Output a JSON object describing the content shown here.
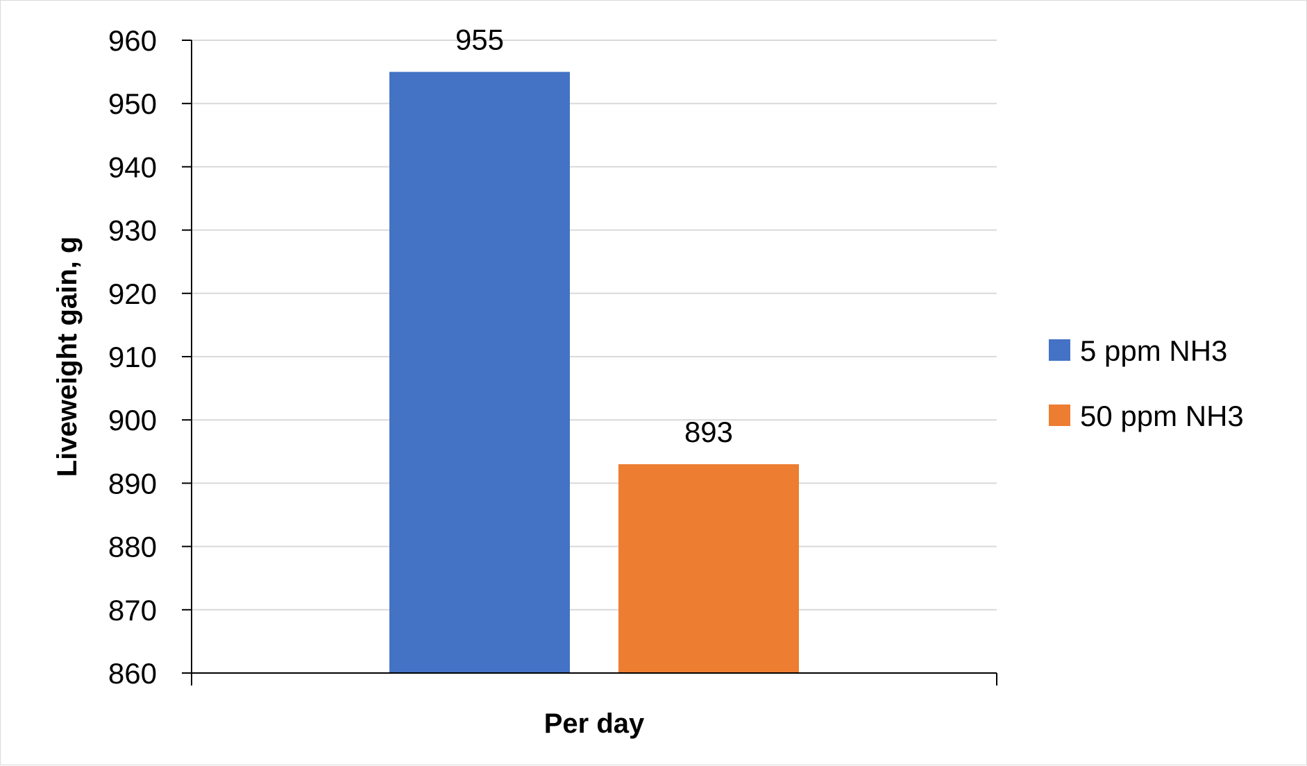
{
  "chart_data": {
    "type": "bar",
    "categories": [
      "Per day"
    ],
    "series": [
      {
        "name": "5 ppm NH3",
        "values": [
          955
        ],
        "color": "#4472c4"
      },
      {
        "name": "50 ppm NH3",
        "values": [
          893
        ],
        "color": "#ed7d31"
      }
    ],
    "xlabel": "Per day",
    "ylabel": "Liveweight gain, g",
    "ylim": [
      860,
      960
    ],
    "yticks": [
      860,
      870,
      880,
      890,
      900,
      910,
      920,
      930,
      940,
      950,
      960
    ],
    "data_labels": [
      "955",
      "893"
    ],
    "grid": true,
    "legend_position": "right"
  }
}
